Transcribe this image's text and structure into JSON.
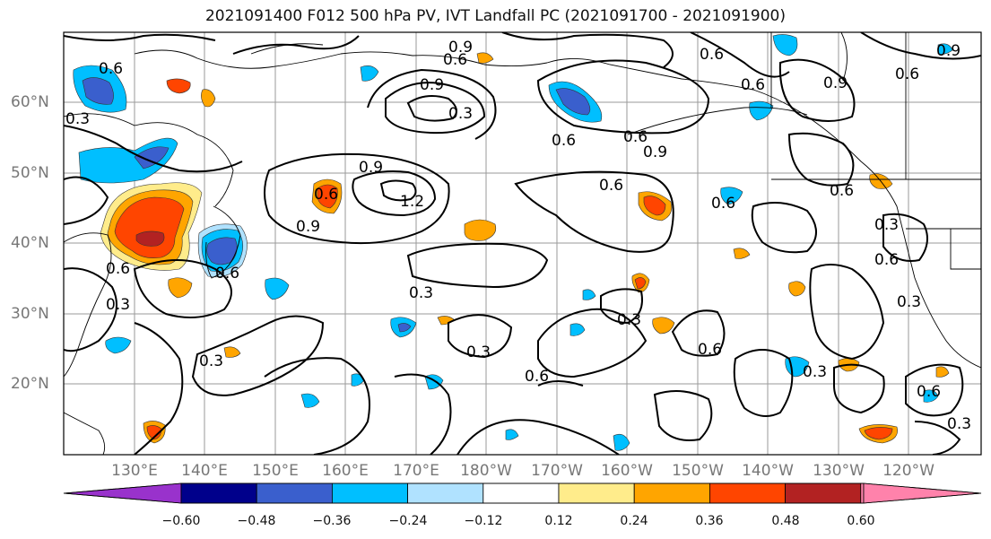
{
  "title": "2021091400 F012 500 hPa PV, IVT Landfall PC (2021091700 - 2021091900)",
  "lat_labels": [
    "60°N",
    "50°N",
    "40°N",
    "30°N",
    "20°N"
  ],
  "lon_labels": [
    "130°E",
    "140°E",
    "150°E",
    "160°E",
    "170°E",
    "180°W",
    "170°W",
    "160°W",
    "150°W",
    "140°W",
    "130°W",
    "120°W"
  ],
  "contour_labels": [
    "0.6",
    "0.3",
    "0.9",
    "0.6",
    "0.9",
    "0.3",
    "0.6",
    "0.9",
    "0.6",
    "0.9",
    "0.6",
    "0.6",
    "0.6",
    "0.9",
    "0.6",
    "0.9",
    "0.6",
    "1.2",
    "0.6",
    "0.9",
    "0.6",
    "0.3",
    "0.6",
    "0.6",
    "0.6",
    "0.3",
    "0.3",
    "0.3",
    "0.3",
    "0.3",
    "0.6",
    "0.6",
    "0.3",
    "0.3",
    "0.6",
    "0.3"
  ],
  "colorbar": {
    "tick_labels": [
      "−0.60",
      "−0.48",
      "−0.36",
      "−0.24",
      "−0.12",
      "0.12",
      "0.24",
      "0.36",
      "0.48",
      "0.60"
    ],
    "colors": [
      "#9932cc",
      "#00008b",
      "#3a5fcd",
      "#00bfff",
      "#b0e2ff",
      "#ffffff",
      "#ffec8b",
      "#ffa500",
      "#ff4500",
      "#b22222",
      "#ff82ab"
    ]
  }
}
